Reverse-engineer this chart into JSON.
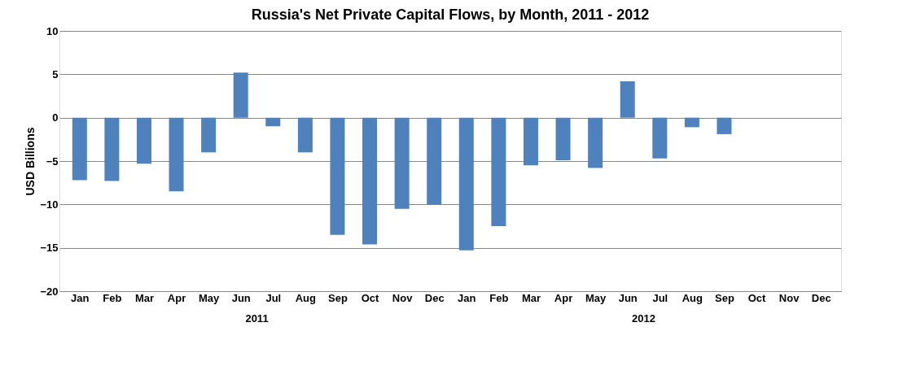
{
  "chart_data": {
    "type": "bar",
    "title": "Russia's Net Private Capital Flows, by Month, 2011 - 2012",
    "ylabel": "USD Billions",
    "categories": [
      "Jan",
      "Feb",
      "Mar",
      "Apr",
      "May",
      "Jun",
      "Jul",
      "Aug",
      "Sep",
      "Oct",
      "Nov",
      "Dec",
      "Jan",
      "Feb",
      "Mar",
      "Apr",
      "May",
      "Jun",
      "Jul",
      "Aug",
      "Sep",
      "Oct",
      "Nov",
      "Dec"
    ],
    "values": [
      -7.2,
      -7.3,
      -5.3,
      -8.5,
      -4.0,
      5.2,
      -1.0,
      -4.0,
      -13.5,
      -14.6,
      -10.5,
      -10.0,
      -15.3,
      -12.5,
      -5.5,
      -4.9,
      -5.8,
      4.2,
      -4.7,
      -1.1,
      -1.9,
      null,
      null,
      null
    ],
    "color": "#4f81bd",
    "ylim": [
      -20,
      10
    ],
    "yticks": [
      -20,
      -15,
      -10,
      -5,
      0,
      5,
      10
    ],
    "grid": "y",
    "annotations": [
      "2011",
      "2012"
    ]
  }
}
